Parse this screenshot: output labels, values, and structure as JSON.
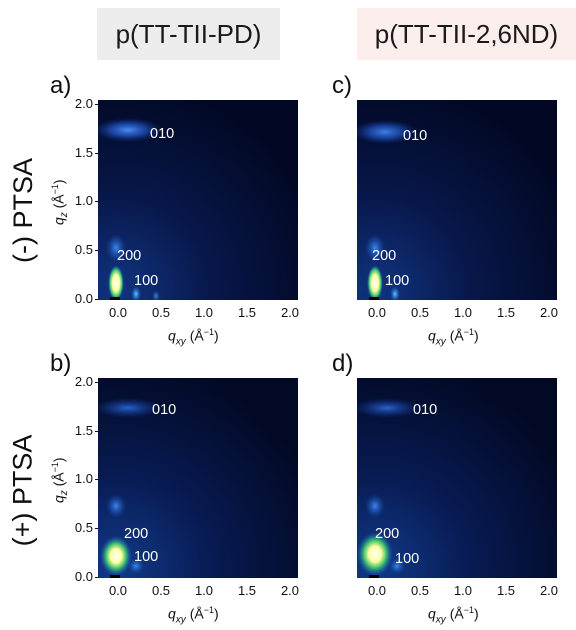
{
  "columns": {
    "left": {
      "title": "p(TT-TII-PD)",
      "bg": "#ececec"
    },
    "right": {
      "title": "p(TT-TII-2,6ND)",
      "bg": "#fdeeee"
    }
  },
  "rows": {
    "top": "(-) PTSA",
    "bottom": "(+) PTSA"
  },
  "panels": [
    {
      "letter": "a)",
      "peaks": {
        "p010": "010",
        "p200": "200",
        "p100": "100"
      }
    },
    {
      "letter": "b)",
      "peaks": {
        "p010": "010",
        "p200": "200",
        "p100": "100"
      }
    },
    {
      "letter": "c)",
      "peaks": {
        "p010": "010",
        "p200": "200",
        "p100": "100"
      }
    },
    {
      "letter": "d)",
      "peaks": {
        "p010": "010",
        "p200": "200",
        "p100": "100"
      }
    }
  ],
  "axes": {
    "xlabel_main": "q",
    "xlabel_sub": "xy",
    "xlabel_unit": "(Å",
    "xlabel_sup": "−1",
    "xlabel_close": ")",
    "ylabel_main": "q",
    "ylabel_sub": "z",
    "ylabel_unit": "(Å",
    "ylabel_sup": "−1",
    "ylabel_close": ")",
    "xticks": [
      "0.0",
      "0.5",
      "1.0",
      "1.5",
      "2.0"
    ],
    "yticks": [
      "0.0",
      "0.5",
      "1.0",
      "1.5",
      "2.0"
    ]
  },
  "colors": {
    "background_dark": "#000a28",
    "scatter_blue": "#1f57c9",
    "hot_core": "#fdff9e",
    "label_white": "#ffffff"
  }
}
